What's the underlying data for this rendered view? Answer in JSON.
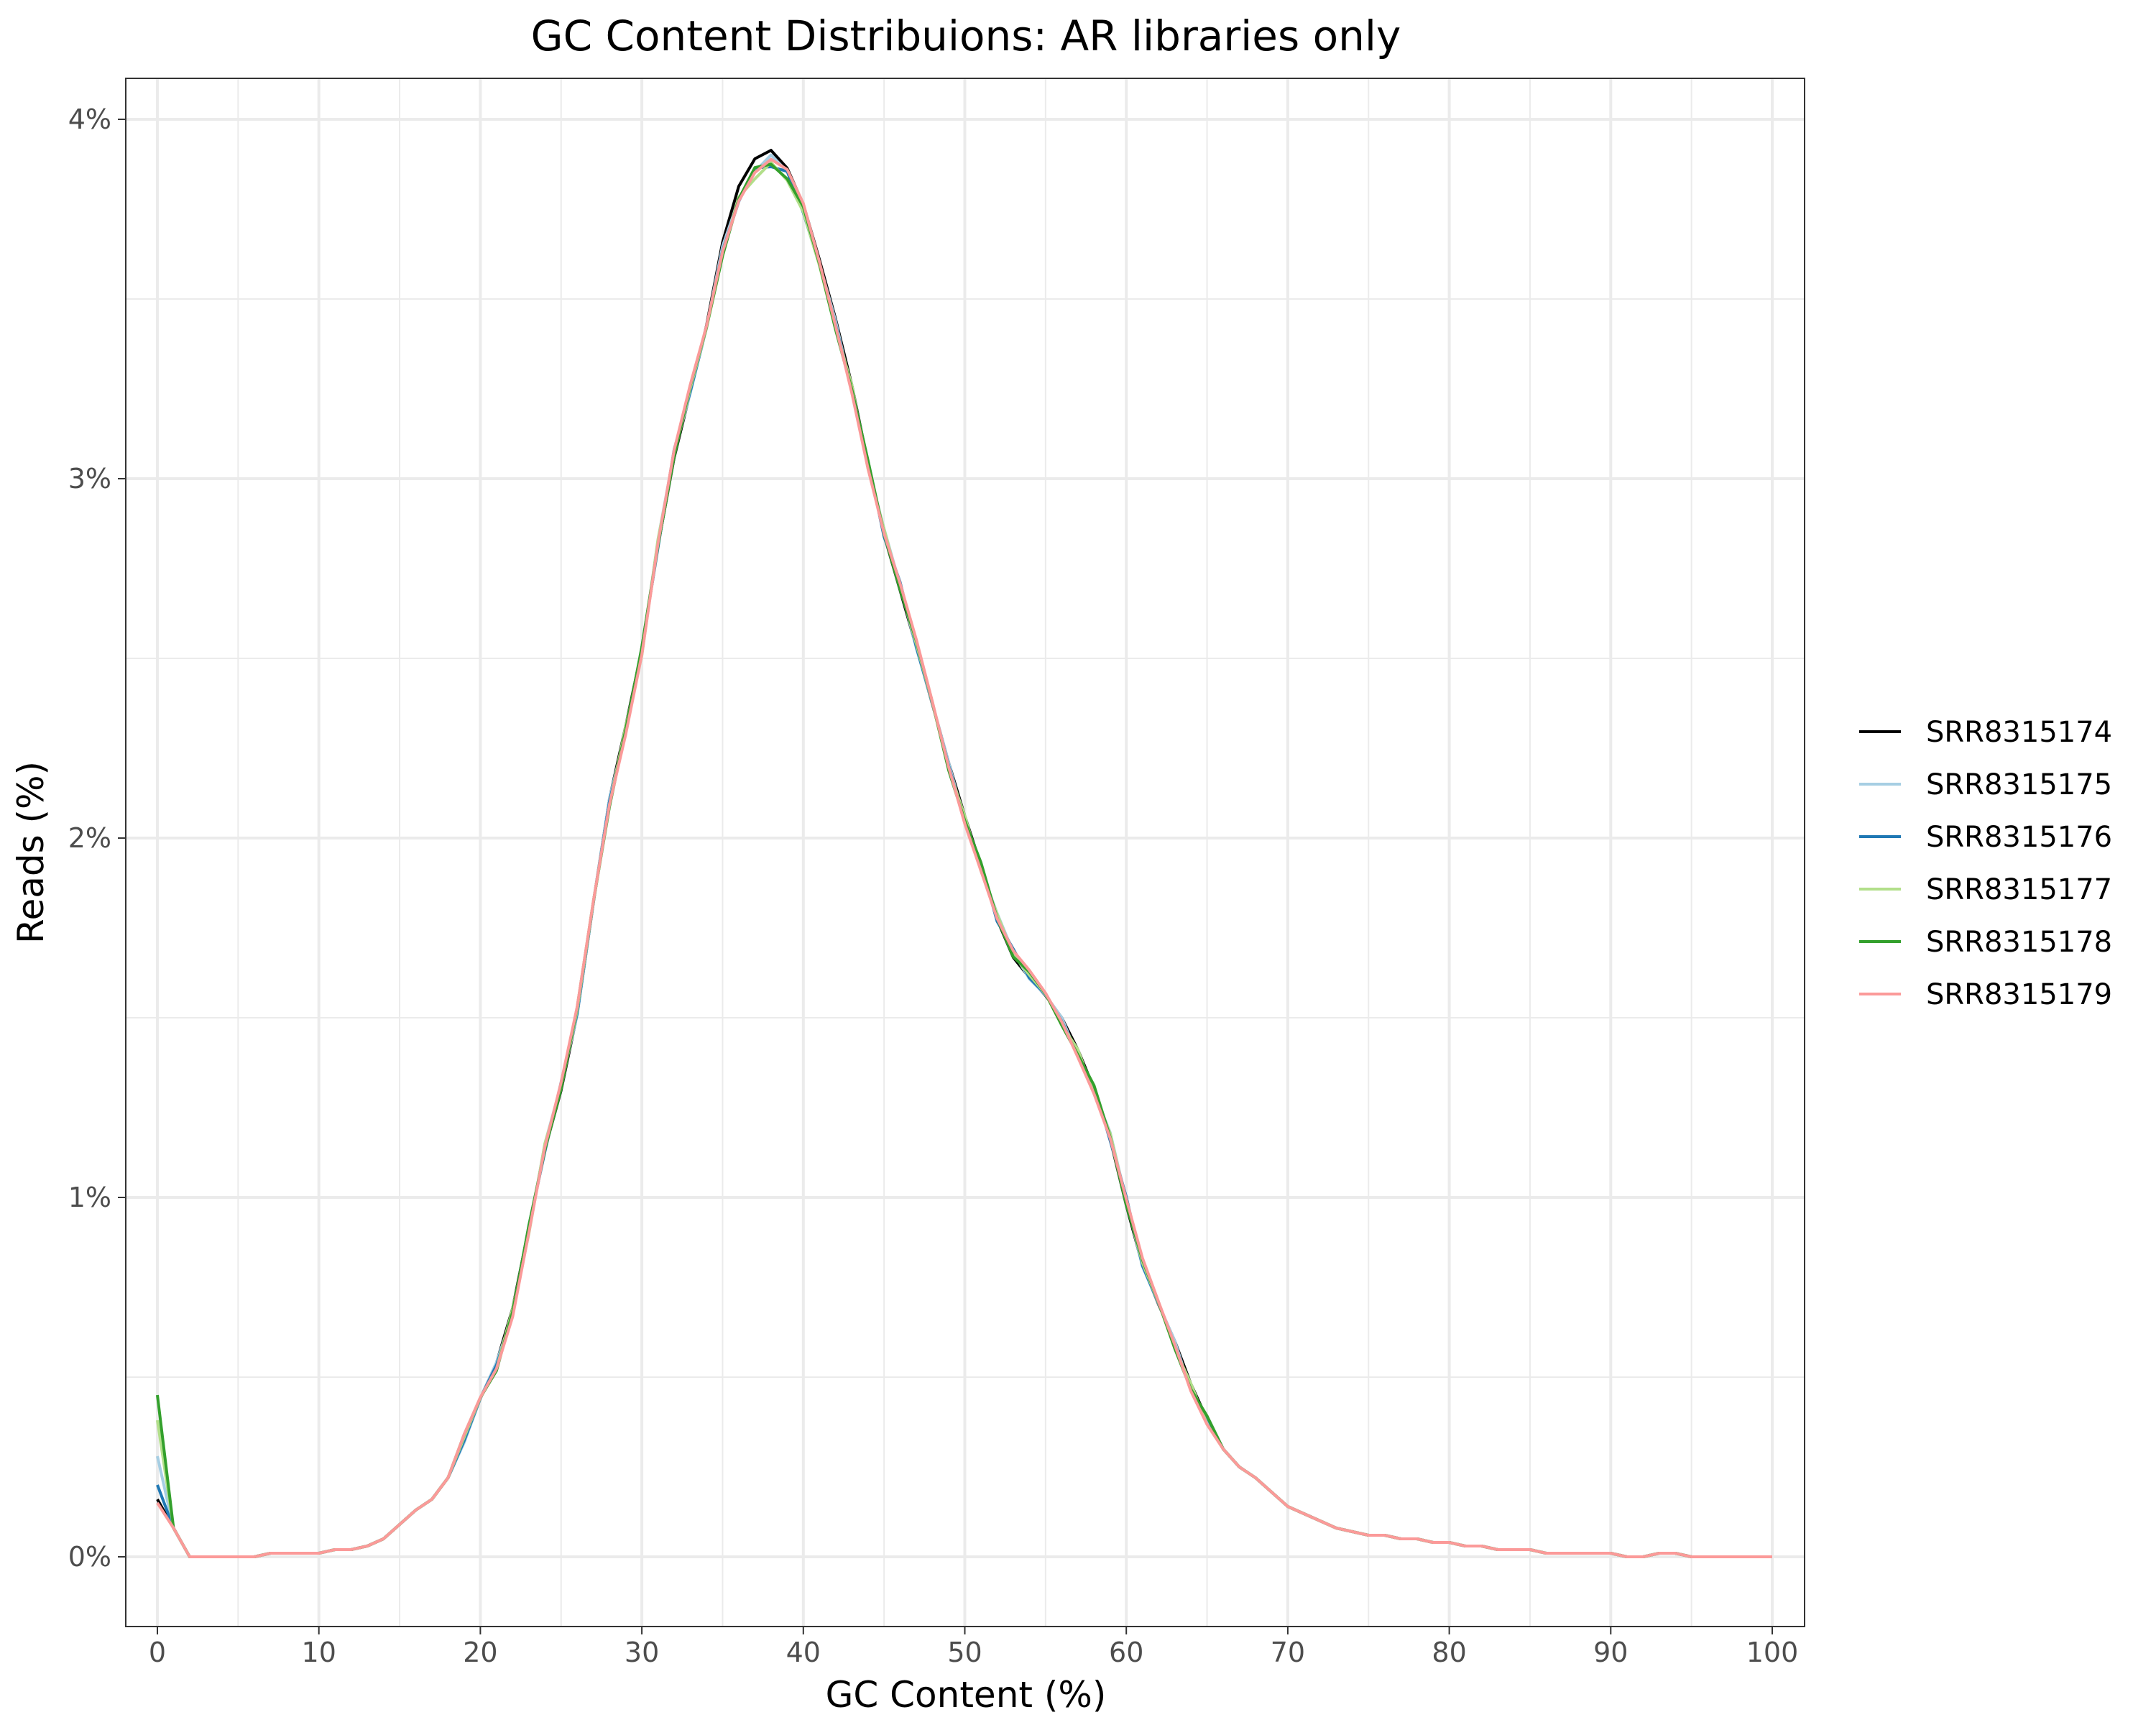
{
  "chart_data": {
    "type": "line",
    "title": "GC Content Distribuions: AR libraries only",
    "xlabel": "GC Content (%)",
    "ylabel": "Reads (%)",
    "xlim": [
      0,
      100
    ],
    "ylim": [
      0,
      4
    ],
    "x_ticks": [
      0,
      10,
      20,
      30,
      40,
      50,
      60,
      70,
      80,
      90,
      100
    ],
    "x_tick_labels": [
      "0",
      "10",
      "20",
      "30",
      "40",
      "50",
      "60",
      "70",
      "80",
      "90",
      "100"
    ],
    "y_ticks": [
      0,
      1,
      2,
      3,
      4
    ],
    "y_tick_labels": [
      "0%",
      "1%",
      "2%",
      "3%",
      "4%"
    ],
    "grid": true,
    "legend_position": "right",
    "x": [
      0,
      1,
      2,
      3,
      4,
      5,
      6,
      7,
      8,
      9,
      10,
      11,
      12,
      13,
      14,
      15,
      16,
      17,
      18,
      19,
      20,
      21,
      22,
      23,
      24,
      25,
      26,
      27,
      28,
      29,
      30,
      31,
      32,
      33,
      34,
      35,
      36,
      37,
      38,
      39,
      40,
      41,
      42,
      43,
      44,
      45,
      46,
      47,
      48,
      49,
      50,
      51,
      52,
      53,
      54,
      55,
      56,
      57,
      58,
      59,
      60,
      61,
      62,
      63,
      64,
      65,
      66,
      67,
      68,
      69,
      70,
      71,
      72,
      73,
      74,
      75,
      76,
      77,
      78,
      79,
      80,
      81,
      82,
      83,
      84,
      85,
      86,
      87,
      88,
      89,
      90,
      91,
      92,
      93,
      94,
      95,
      96,
      97,
      98,
      99,
      100
    ],
    "base": [
      0.17,
      0.08,
      0,
      0,
      0,
      0,
      0,
      0.01,
      0.01,
      0.01,
      0.01,
      0.02,
      0.02,
      0.03,
      0.05,
      0.09,
      0.13,
      0.16,
      0.22,
      0.33,
      0.44,
      0.53,
      0.68,
      0.91,
      1.14,
      1.31,
      1.52,
      1.82,
      2.1,
      2.3,
      2.52,
      2.82,
      3.07,
      3.25,
      3.42,
      3.64,
      3.79,
      3.87,
      3.9,
      3.86,
      3.76,
      3.6,
      3.43,
      3.25,
      3.04,
      2.85,
      2.7,
      2.54,
      2.37,
      2.2,
      2.05,
      1.92,
      1.78,
      1.68,
      1.62,
      1.56,
      1.49,
      1.4,
      1.3,
      1.17,
      0.99,
      0.82,
      0.7,
      0.59,
      0.47,
      0.38,
      0.3,
      0.25,
      0.22,
      0.18,
      0.14,
      0.12,
      0.1,
      0.08,
      0.07,
      0.06,
      0.06,
      0.05,
      0.05,
      0.04,
      0.04,
      0.03,
      0.03,
      0.02,
      0.02,
      0.02,
      0.01,
      0.01,
      0.01,
      0.01,
      0.01,
      0,
      0,
      0.01,
      0.01,
      0,
      0,
      0,
      0,
      0,
      0
    ],
    "series": [
      {
        "name": "SRR8315174",
        "color": "#000000",
        "first": 0.16,
        "peak": 3.92
      },
      {
        "name": "SRR8315175",
        "color": "#a6cee3",
        "first": 0.28,
        "peak": 3.89
      },
      {
        "name": "SRR8315176",
        "color": "#1f78b4",
        "first": 0.2,
        "peak": 3.88
      },
      {
        "name": "SRR8315177",
        "color": "#b2df8a",
        "first": 0.38,
        "peak": 3.87
      },
      {
        "name": "SRR8315178",
        "color": "#33a02c",
        "first": 0.45,
        "peak": 3.88
      },
      {
        "name": "SRR8315179",
        "color": "#fb9a99",
        "first": 0.15,
        "peak": 3.89
      }
    ]
  }
}
